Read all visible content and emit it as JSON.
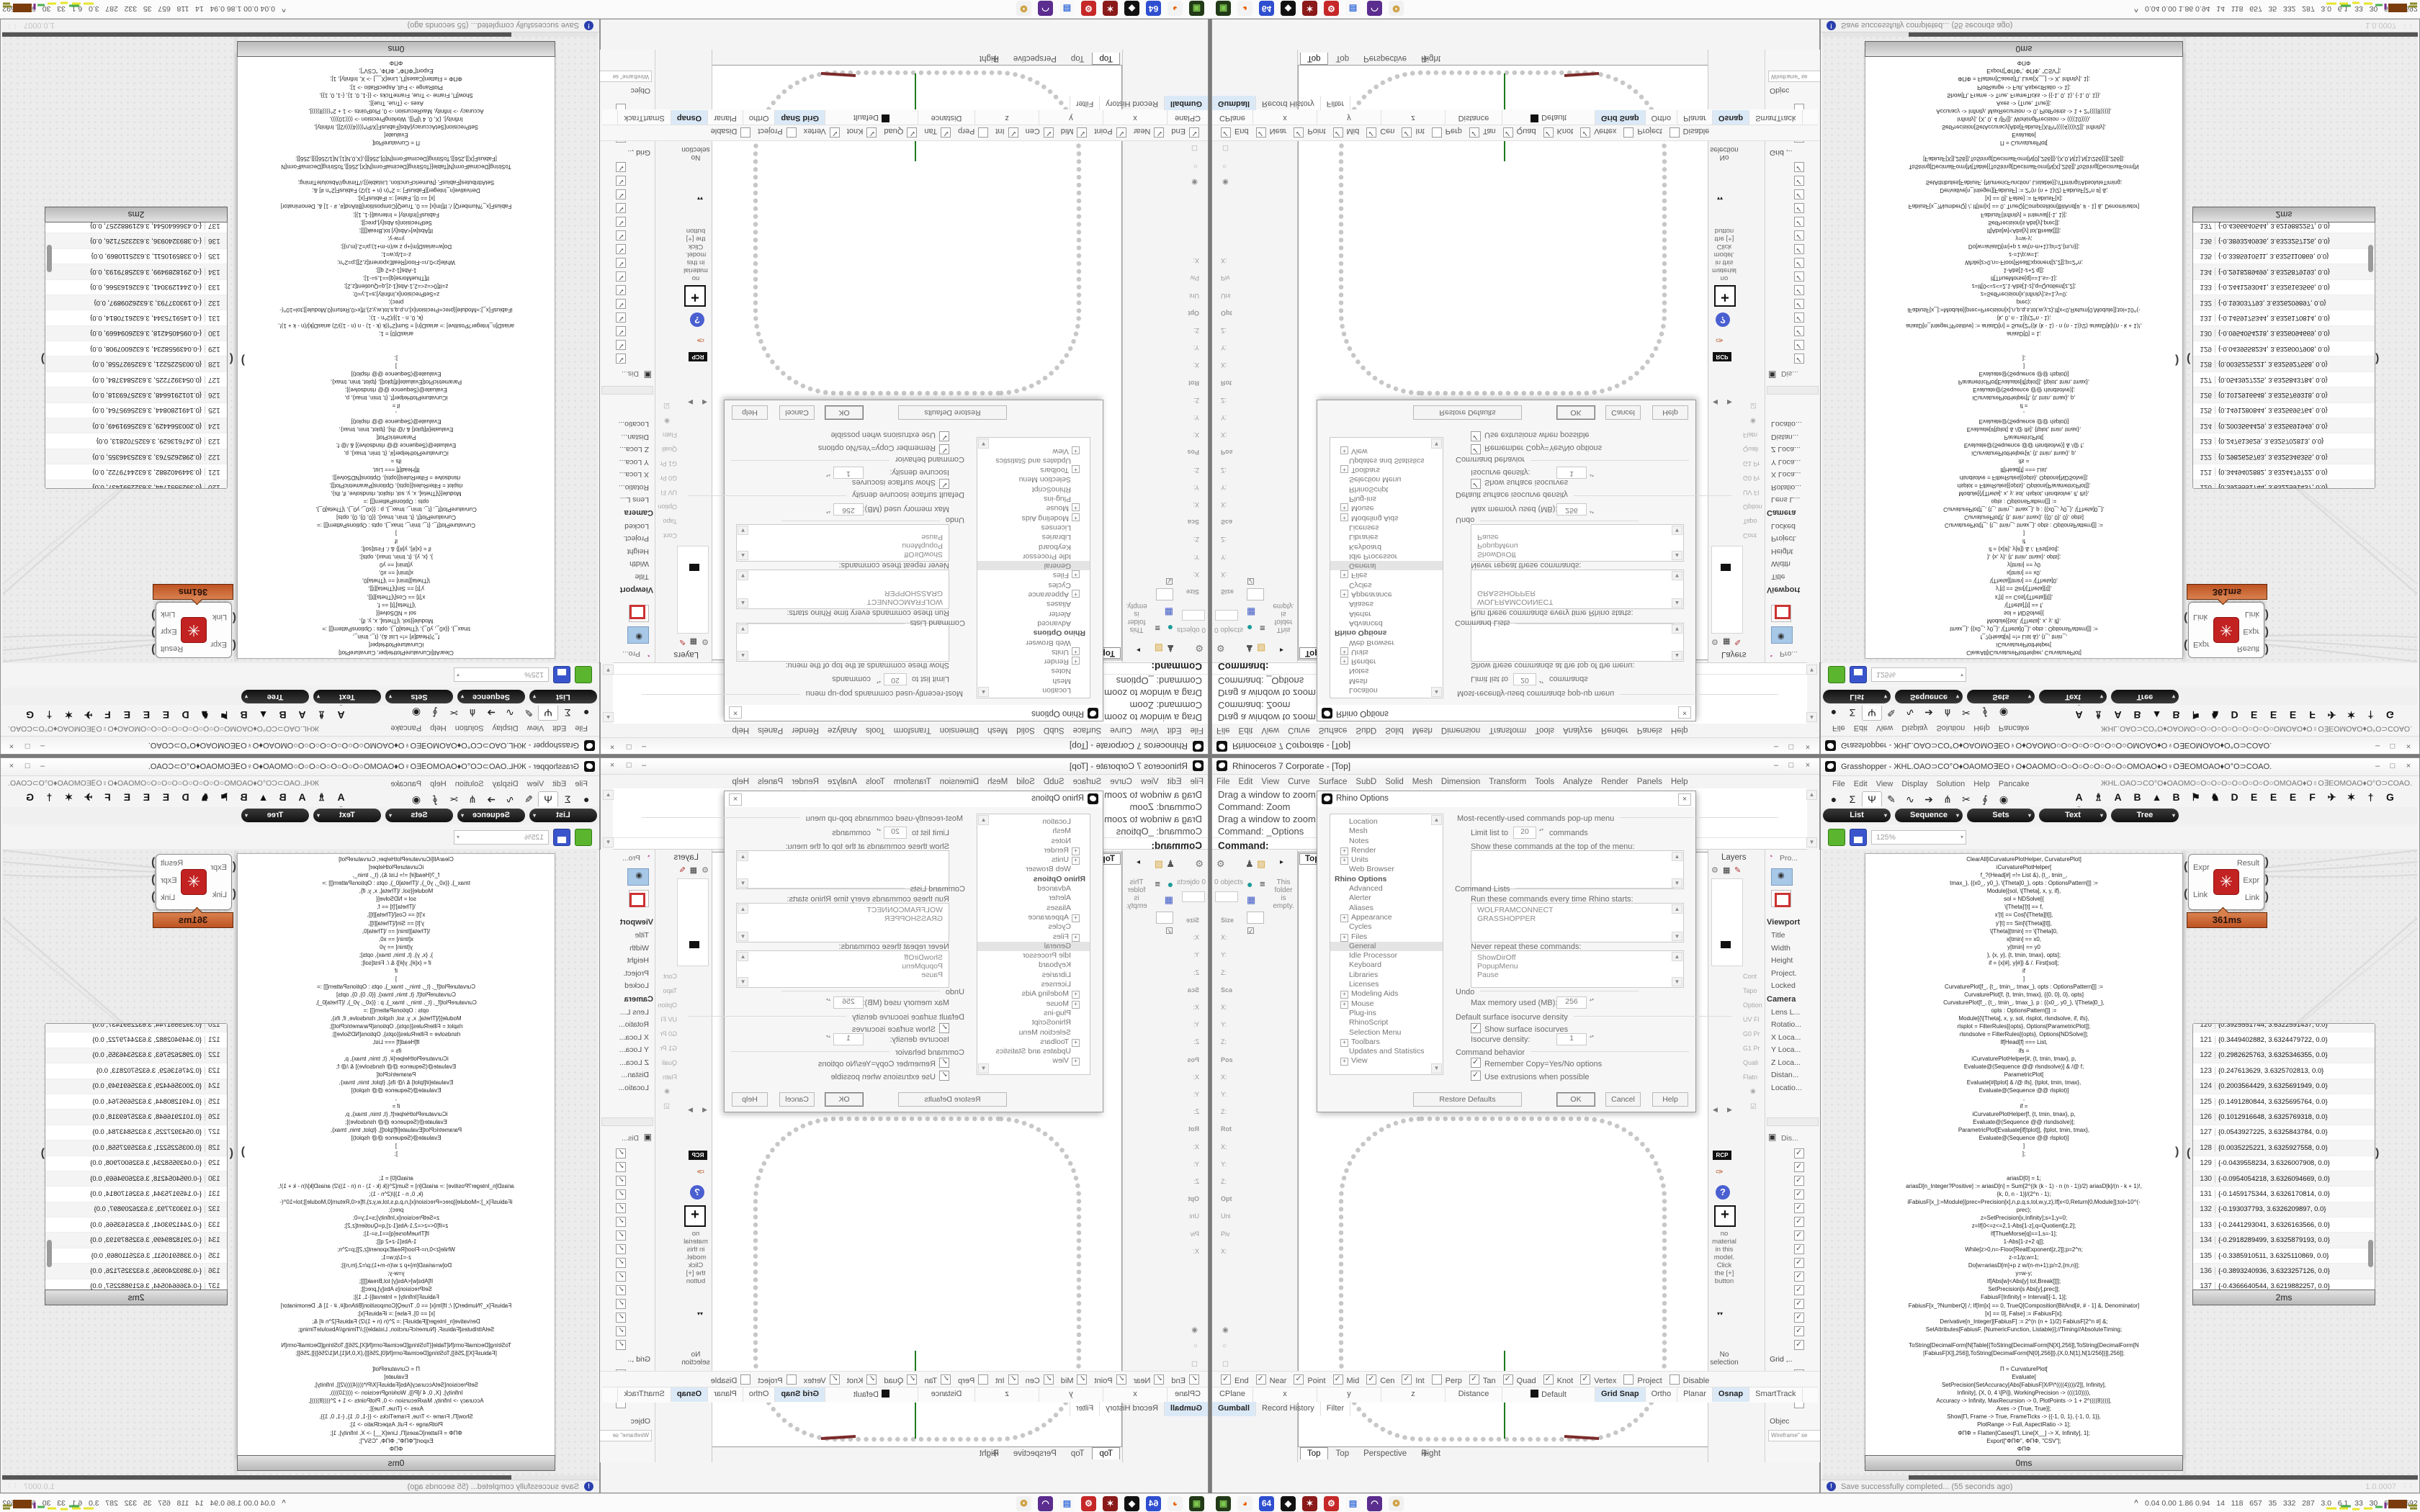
{
  "icons": {
    "minimize": "–",
    "maximize": "□",
    "close": "×",
    "scroll_up": "▲",
    "scroll_down": "▼",
    "scroll_left": "◀",
    "scroll_right": "▶",
    "dropdown": "▾",
    "plus_tab": "✛",
    "tray_up": "^",
    "grip": "⋮⋮",
    "spikey": "✳",
    "question": "?",
    "rcp": "RCP",
    "plus_box": "+",
    "collapse": "▾▾",
    "camera_glyph": "◉",
    "display_glyph": "▣",
    "pin": "▸"
  },
  "rhino": {
    "title": "Rhinoceros 7 Corporate - [Top]",
    "menus": [
      "File",
      "Edit",
      "View",
      "Curve",
      "Surface",
      "SubD",
      "Solid",
      "Mesh",
      "Dimension",
      "Transform",
      "Tools",
      "Analyze",
      "Render",
      "Panels",
      "Help"
    ],
    "command": {
      "history": [
        "Drag a window to zoom (",
        "Command: Zoom",
        "Drag a window to zoom (",
        "Command: _Options"
      ],
      "prompt": "Command:"
    },
    "left_dock": {
      "object_count": "0 objects",
      "folder_note": "This folder is empty.",
      "boxedit": [
        {
          "label": "Size",
          "head": true
        },
        {
          "label": "X:"
        },
        {
          "label": "Y:"
        },
        {
          "label": "Z:"
        },
        {
          "label": "Sca",
          "head": true
        },
        {
          "label": "X:"
        },
        {
          "label": "Y:"
        },
        {
          "label": "Z:"
        },
        {
          "label": "Pos",
          "head": true
        },
        {
          "label": "X:"
        },
        {
          "label": "Y:"
        },
        {
          "label": "Z:"
        },
        {
          "label": "Rot",
          "head": true
        },
        {
          "label": "X:"
        },
        {
          "label": "Y:"
        },
        {
          "label": "Z:"
        },
        {
          "label": "Opt",
          "head": true
        },
        {
          "label": "Uni"
        },
        {
          "label": "Piv"
        },
        {
          "label": "X:"
        }
      ]
    },
    "viewport": {
      "label": "Top",
      "tabs": [
        {
          "label": "Top",
          "active": true
        },
        {
          "label": "Top"
        },
        {
          "label": "Perspective"
        },
        {
          "label": "Right"
        }
      ]
    },
    "dialog": {
      "title": "Rhino Options",
      "tree": [
        {
          "label": "Location"
        },
        {
          "label": "Mesh"
        },
        {
          "label": "Notes"
        },
        {
          "label": "Render",
          "plus": true
        },
        {
          "label": "Units",
          "plus": true
        },
        {
          "label": "Web Browser"
        },
        {
          "label": "Rhino Options",
          "bold": true
        },
        {
          "label": "Advanced"
        },
        {
          "label": "Alerter"
        },
        {
          "label": "Aliases"
        },
        {
          "label": "Appearance",
          "plus": true
        },
        {
          "label": "Cycles"
        },
        {
          "label": "Files",
          "plus": true
        },
        {
          "label": "General",
          "sel": true
        },
        {
          "label": "Idle Processor"
        },
        {
          "label": "Keyboard"
        },
        {
          "label": "Libraries"
        },
        {
          "label": "Licenses"
        },
        {
          "label": "Modeling Aids",
          "plus": true
        },
        {
          "label": "Mouse",
          "plus": true
        },
        {
          "label": "Plug-ins"
        },
        {
          "label": "RhinoScript"
        },
        {
          "label": "Selection Menu"
        },
        {
          "label": "Toolbars",
          "plus": true
        },
        {
          "label": "Updates and Statistics"
        },
        {
          "label": "View",
          "plus": true
        }
      ],
      "mru_header": "Most-recently-used commands pop-up menu",
      "limit_label": "Limit list to",
      "limit_value": "20",
      "limit_suffix": "commands",
      "show_top_label": "Show these commands at the top of the menu:",
      "command_lists_header": "Command Lists",
      "startup_label": "Run these commands every time Rhino starts:",
      "startup_commands": [
        "WOLFRAMCONNECT",
        "GRASSHOPPER"
      ],
      "never_label": "Never repeat these commands:",
      "never_commands": [
        "ShowDirOff",
        "PopupMenu",
        "Pause"
      ],
      "undo_header": "Undo",
      "max_mem_label": "Max memory used (MB):",
      "max_mem_value": "256",
      "iso_header": "Default surface isocurve density",
      "show_iso_label": "Show surface isocurves",
      "iso_density_label": "Isocurve density:",
      "iso_density_value": "1",
      "behavior_header": "Command behavior",
      "remember_label": "Remember Copy=Yes/No options",
      "extrusions_label": "Use extrusions when possible",
      "buttons": [
        {
          "label": "Restore Defaults"
        },
        {
          "label": "OK",
          "def": true
        },
        {
          "label": "Cancel"
        },
        {
          "label": "Help"
        }
      ]
    },
    "right_dock": {
      "layers_title": "Layers",
      "strip_labels": [
        "Cont",
        "Tapo",
        "Option",
        "UV Fl",
        "G0 Pr",
        "G1 Pr",
        "Quali",
        "Flatn"
      ],
      "material_note": "no material in this model. Click the [+] button",
      "no_selection": "No selection",
      "props_tab": "Pro...",
      "viewport_header": "Viewport",
      "viewport_rows": [
        {
          "label": "Title"
        },
        {
          "label": "Width",
          "dimmed": true
        },
        {
          "label": "Height",
          "dimmed": true
        },
        {
          "label": "Project."
        },
        {
          "label": "Locked"
        }
      ],
      "camera_header": "Camera",
      "camera_rows": [
        {
          "label": "Lens L...",
          "dimmed": true
        },
        {
          "label": "Rotatio..."
        },
        {
          "label": "X Loca..."
        },
        {
          "label": "Y Loca..."
        },
        {
          "label": "Z Loca..."
        },
        {
          "label": "Distan..."
        },
        {
          "label": "Locatio..."
        }
      ],
      "display_tab": "Dis...",
      "display_checks": [
        {
          "on": true
        },
        {
          "on": true
        },
        {
          "on": true
        },
        {
          "on": true
        },
        {
          "on": true
        },
        {
          "on": true
        },
        {
          "on": true
        },
        {
          "on": true
        },
        {
          "on": true
        },
        {
          "on": true
        },
        {
          "on": true
        },
        {
          "on": true
        },
        {
          "on": true
        },
        {
          "on": true
        },
        {
          "on": true
        }
      ],
      "grid_label": "Grid ,..",
      "object_label": "Objec",
      "wireframe_label": "Wireframe\" se"
    },
    "osnap": [
      {
        "label": "End",
        "on": true
      },
      {
        "label": "Near",
        "on": true
      },
      {
        "label": "Point",
        "on": true
      },
      {
        "label": "Mid",
        "on": true
      },
      {
        "label": "Cen",
        "on": true
      },
      {
        "label": "Int",
        "on": true
      },
      {
        "label": "Perp",
        "on": false
      },
      {
        "label": "Tan",
        "on": true
      },
      {
        "label": "Quad",
        "on": true
      },
      {
        "label": "Knot",
        "on": true
      },
      {
        "label": "Vertex",
        "on": true
      },
      {
        "label": "Project",
        "on": false
      },
      {
        "label": "Disable",
        "on": false
      }
    ],
    "status": [
      {
        "label": "CPlane"
      },
      {
        "label": "x"
      },
      {
        "label": "y"
      },
      {
        "label": "z"
      },
      {
        "label": "Distance"
      },
      {
        "label": "Default",
        "swatch": true
      },
      {
        "label": "Grid Snap",
        "hl": true
      },
      {
        "label": "Ortho"
      },
      {
        "label": "Planar"
      },
      {
        "label": "Osnap",
        "hl": true
      },
      {
        "label": "SmartTrack"
      },
      {
        "label": "Gumball",
        "hl": true
      },
      {
        "label": "Record History"
      },
      {
        "label": "Filter"
      }
    ]
  },
  "grasshopper": {
    "title": "Grasshopper - ЖHL.OAO⊃CO°O♦OAOMO∃EO♀O♦OAOMO○O○O○O○O○O○O○OMOAO♦O♀O∃EOMOAO♦O°O⊃COAO.",
    "menus": [
      "File",
      "Edit",
      "View",
      "Display",
      "Solution",
      "Help",
      "Pancake"
    ],
    "doc_string": "ЖHL.OAO⊃CO°O♦OAOMO○O○O○O○O○O○O○O○OMOAO♦O♀O∃EOMOAO♦O°O⊃COAO.",
    "tab_icons": [
      {
        "g": "●"
      },
      {
        "g": "Σ"
      },
      {
        "g": "Ψ",
        "sel": true
      },
      {
        "g": "✎"
      },
      {
        "g": "∿"
      },
      {
        "g": "➔"
      },
      {
        "g": "⋔"
      },
      {
        "g": "✂"
      },
      {
        "g": "∮"
      },
      {
        "g": "◉"
      }
    ],
    "tab_letters": [
      "A",
      "♗",
      "A",
      "B",
      "▲",
      "B",
      "⚑",
      "♞",
      "D",
      "E",
      "E",
      "E",
      "F",
      "✈",
      "✶",
      "†",
      "G",
      "G"
    ],
    "subtabs": [
      "List",
      "Sequence",
      "Sets",
      "Text",
      "Tree"
    ],
    "zoom_value": "125%",
    "toolbar_icons": [
      {
        "g": "⛶",
        "c": "#111"
      },
      {
        "g": "◉",
        "c": "#1a6fd4"
      },
      {
        "g": "✎",
        "c": "#c22222"
      },
      {
        "g": "◧",
        "c": "#222"
      },
      {
        "g": "▮",
        "c": "#111"
      },
      {
        "g": "⇅",
        "c": "#1133cc"
      },
      {
        "g": "◍",
        "c": "#3366cc"
      },
      {
        "g": "GHA",
        "c": "#222",
        "small": true
      },
      {
        "g": "▤",
        "c": "#444"
      },
      {
        "g": "⌕",
        "c": "#333"
      },
      {
        "g": "▣",
        "c": "#e91e8c"
      },
      {
        "g": "⬤",
        "c": "#8a8a8a"
      },
      {
        "g": "◎",
        "c": "#8a8a8a"
      },
      {
        "g": "⬟",
        "c": "#c62828"
      },
      {
        "g": "⬤",
        "c": "#00897b"
      },
      {
        "g": "⬤",
        "c": "#43a047"
      },
      {
        "g": "◖",
        "c": "#fb8c00"
      },
      {
        "g": "◌",
        "c": "#777"
      }
    ],
    "component": {
      "inputs": [
        "Expr",
        "Link"
      ],
      "outputs": [
        "Result",
        "Expr",
        "Link"
      ],
      "time": "361ms"
    },
    "panel_time": "0ms",
    "list_time": "2ms",
    "list_rows": [
      {
        "n": "120",
        "v": "{0.3925551744, 3.6322591437, 0.0}"
      },
      {
        "n": "121",
        "v": "{0.3449402882, 3.6324479722, 0.0}"
      },
      {
        "n": "122",
        "v": "{0.2982625763, 3.6325346355, 0.0}"
      },
      {
        "n": "123",
        "v": "{0.247613629, 3.6325702813, 0.0}"
      },
      {
        "n": "124",
        "v": "{0.2003564429, 3.6325691949, 0.0}"
      },
      {
        "n": "125",
        "v": "{0.1491280844, 3.6325695764, 0.0}"
      },
      {
        "n": "126",
        "v": "{0.1012916648, 3.6325769318, 0.0}"
      },
      {
        "n": "127",
        "v": "{0.0543927225, 3.6325843784, 0.0}"
      },
      {
        "n": "128",
        "v": "{0.0035225221, 3.6325927558, 0.0}"
      },
      {
        "n": "129",
        "v": "{-0.0439558234, 3.6326007908, 0.0}"
      },
      {
        "n": "130",
        "v": "{-0.0954054218, 3.6326094669, 0.0}"
      },
      {
        "n": "131",
        "v": "{-0.1459175344, 3.6326170814, 0.0}"
      },
      {
        "n": "132",
        "v": "{-0.193037793, 3.6326209897, 0.0}"
      },
      {
        "n": "133",
        "v": "{-0.2441293041, 3.6326163566, 0.0}"
      },
      {
        "n": "134",
        "v": "{-0.2918289499, 3.6325879193, 0.0}"
      },
      {
        "n": "135",
        "v": "{-0.3385910511, 3.6325110869, 0.0}"
      },
      {
        "n": "136",
        "v": "{-0.3893240936, 3.6323257126, 0.0}"
      },
      {
        "n": "137",
        "v": "{-0.4366640544, 3.6219882257, 0.0}"
      }
    ],
    "code_lines": [
      "ClearAll[iCurvaturePlotHelper, CurvaturePlot]",
      "iCurvaturePlotHelper[",
      "f_?(Head[#] =!= List &), {t_, tmin_,",
      "tmax_}, {{x0_, y0_}, \\[Theta]0_}, opts : OptionsPattern[]] :=",
      "Module[{sol, \\[Theta], x, y, if},",
      "sol = NDSolve[{",
      "\\[Theta]'[t] == f,",
      "x'[t] == Cos[\\[Theta][t]],",
      "y'[t] == Sin[\\[Theta][t]],",
      "\\[Theta][tmin] == \\[Theta]0,",
      "x[tmin] == x0,",
      "y[tmin] == y0",
      "}, {x, y}, {t, tmin, tmax}, opts];",
      "if = {x[#], y[#]} & /. First[sol];",
      "if",
      "]",
      "CurvaturePlot[f_, {t_, tmin_, tmax_}, opts : OptionsPattern[]] :=",
      "CurvaturePlot[f, {t, tmin, tmax}, {{0, 0}, 0}, opts]",
      "CurvaturePlot[f_, {t_, tmin_, tmax_}, p : {{x0_, y0_}, \\[Theta]0_},",
      "opts : OptionsPattern[]] :=",
      "Module[{\\[Theta], x, y, sol, rlsplot, rlsndsolve, if, ifs},",
      "rlsplot = FilterRules[{opts}, Options[ParametricPlot]];",
      "rlsndsolve = FilterRules[{opts}, Options[NDSolve]];",
      "If[Head[f] === List,",
      "ifs =",
      "iCurvaturePlotHelper[#, {t, tmin, tmax}, p,",
      "Evaluate@(Sequence @@ rlsndsolve)] & /@ f;",
      "ParametricPlot[",
      "Evaluate[#[tplot] & /@ ifs], {tplot, tmin, tmax},",
      "Evaluate@(Sequence @@ rlsplot)]",
      ",",
      "if =",
      "iCurvaturePlotHelper[f, {t, tmin, tmax}, p,",
      "Evaluate@(Sequence @@ rlsndsolve)];",
      "ParametricPlot[Evaluate[if[tplot]], {tplot, tmin, tmax},",
      "Evaluate@(Sequence @@ rlsplot)]",
      "]",
      "];",
      "",
      "",
      "ariasD[0] = 1;",
      "ariasD[n_Integer?Positive] := ariasD[n] = Sum[2^((k (k - 1) - n (n - 1))/2) ariasD[k]/(n - k + 1)!,",
      "{k, 0, n - 1}]/(2^n - 1);",
      "iFabiusF[x_]:=Module[{prec=Precision[x],n,p,q,s,tol,w,y,z},If[x<0,Return[0,Module]];tol=10^(-",
      "prec);",
      "z=SetPrecision[x,Infinity];s=1;y=0;",
      "z=If[0<=z<=2,1-Abs[1-z],q=Quotient[z,2];",
      "If[ThueMorse[q]==1,s=-1];",
      "1-Abs[1-z+2 q]];",
      "While[z>0,n=-Floor[RealExponent[z,2]];p=2^n;",
      "z-=1/p;w=1;",
      "Do[w=ariasD[m]+p z w/(n-m+1);p/=2,{m,n}];",
      "y=w-y;",
      "If[Abs[w]<Abs[y] tol,Break[]]];",
      "SetPrecision[s Abs[y],prec]];",
      "FabiusF[Infinity] = Interval[{-1, 1}];",
      "FabiusF[x_?NumberQ] /; If[Im[x] == 0, TrueQ[Composition[BitAnd[#, # - 1] &, Denominator]",
      "[x] == 0], False] := iFabiusF[x];",
      "Derivative[n_Integer][FabiusF] := 2^(n (n + 1)/2) FabiusF[2^n #] &;",
      "SetAttributes[FabiusF, {NumericFunction, Listable}];//Timing//AbsoluteTiming;",
      "",
      "ToString[DecimalForm[N[Table[{ToString[DecimalForm[N[X],256]],ToString[DecimalForm[N",
      "[FabiusF[X]],256]],ToString[DecimalForm[N[0],256]]},{X,0,N[1],N[1/256]}]],256]];",
      "",
      "Π = CurvaturePlot[",
      "Evaluate[",
      "SetPrecision[SetAccuracy[Abs[FabiusF[X/Pi*((((4))))/2]], Infinity],",
      "Infinity], {X, 0, 4 \\[Pi]}, WorkingPrecision -> ((((10)))),",
      "Accuracy -> Infinity, MaxRecursion -> 0, PlotPoints -> 1 + 2^((((8))))],",
      "Axes -> {True, True}];",
      "Show[Π, Frame -> True, FrameTicks -> {{-1, 0, 1}, {-1, 0, 1}},",
      "PlotRange -> Full, AspectRatio -> 1];",
      "ΦΠΦ = Flatten[Cases[Π, Line[X__] -> X, Infinity], 1];",
      "Export[\"ΦΠΦ\", ΦΠΦ, \"CSV\"];",
      "ΦΠΦ"
    ],
    "status": "Save successfully completed... (55 seconds ago)",
    "version": "1.0.0007"
  },
  "taskbar": {
    "tray_text": "0.04 0.00 1.86 0.94   14   118   657   35   332   287   3.0   6.1   33   30   61607592",
    "icons": [
      {
        "g": "▣",
        "bg": "#223a17",
        "fg": "#7ec850"
      },
      {
        "g": "◕",
        "bg": "#f3f3f3",
        "fg": "#e66000"
      },
      {
        "g": "64",
        "bg": "#2f4fd0",
        "fg": "#ffffff"
      },
      {
        "g": "◆",
        "bg": "#111111",
        "fg": "#ffffff"
      },
      {
        "g": "✶",
        "bg": "#8b1a1a",
        "fg": "#ffffff"
      },
      {
        "g": "⚙",
        "bg": "#c62828",
        "fg": "#ffffff"
      },
      {
        "g": "▤",
        "bg": "#f8f8f8",
        "fg": "#3a6fd8"
      },
      {
        "g": "◠",
        "bg": "#5b2d8e",
        "fg": "#ffffff"
      },
      {
        "g": "❂",
        "bg": "#f1f1f1",
        "fg": "#cc9933"
      }
    ]
  }
}
